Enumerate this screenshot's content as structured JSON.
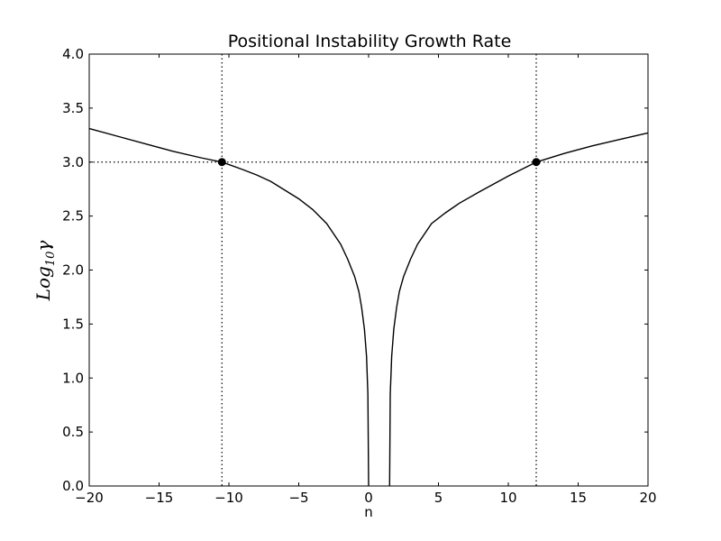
{
  "chart_data": {
    "type": "line",
    "title": "Positional Instability Growth Rate",
    "xlabel": "n",
    "ylabel": {
      "base": "Log",
      "subscript": "10",
      "symbol": "γ"
    },
    "xlim": [
      -20,
      20
    ],
    "ylim": [
      0.0,
      4.0
    ],
    "x_ticks": [
      -20,
      -15,
      -10,
      -5,
      0,
      5,
      10,
      15,
      20
    ],
    "x_tick_labels": [
      "−20",
      "−15",
      "−10",
      "−5",
      "0",
      "5",
      "10",
      "15",
      "20"
    ],
    "y_ticks": [
      0.0,
      0.5,
      1.0,
      1.5,
      2.0,
      2.5,
      3.0,
      3.5,
      4.0
    ],
    "y_tick_labels": [
      "0.0",
      "0.5",
      "1.0",
      "1.5",
      "2.0",
      "2.5",
      "3.0",
      "3.5",
      "4.0"
    ],
    "grid": false,
    "series": [
      {
        "style": "solid",
        "color": "#000000",
        "segments": [
          [
            [
              -20,
              3.31
            ],
            [
              -18,
              3.24
            ],
            [
              -16,
              3.17
            ],
            [
              -14,
              3.1
            ],
            [
              -12,
              3.04
            ],
            [
              -10.5,
              3.0
            ],
            [
              -9,
              2.93
            ],
            [
              -8,
              2.88
            ],
            [
              -7,
              2.82
            ],
            [
              -6,
              2.74
            ],
            [
              -5,
              2.66
            ],
            [
              -4,
              2.56
            ],
            [
              -3,
              2.43
            ],
            [
              -2,
              2.24
            ],
            [
              -1.5,
              2.1
            ],
            [
              -1,
              1.94
            ],
            [
              -0.7,
              1.8
            ],
            [
              -0.5,
              1.65
            ],
            [
              -0.3,
              1.45
            ],
            [
              -0.15,
              1.2
            ],
            [
              -0.05,
              0.85
            ],
            [
              0.0,
              0.0
            ]
          ],
          [
            [
              1.5,
              0.0
            ],
            [
              1.55,
              0.85
            ],
            [
              1.65,
              1.2
            ],
            [
              1.8,
              1.45
            ],
            [
              2.0,
              1.65
            ],
            [
              2.2,
              1.8
            ],
            [
              2.5,
              1.94
            ],
            [
              3.0,
              2.1
            ],
            [
              3.5,
              2.24
            ],
            [
              4.5,
              2.43
            ],
            [
              5.5,
              2.53
            ],
            [
              6.5,
              2.62
            ],
            [
              8,
              2.73
            ],
            [
              10,
              2.87
            ],
            [
              12,
              3.0
            ],
            [
              14,
              3.08
            ],
            [
              16,
              3.15
            ],
            [
              18,
              3.21
            ],
            [
              20,
              3.27
            ]
          ]
        ]
      }
    ],
    "markers": [
      {
        "x": -10.5,
        "y": 3.0
      },
      {
        "x": 12.0,
        "y": 3.0
      }
    ],
    "reference_lines": {
      "horizontal": [
        3.0
      ],
      "vertical": [
        -10.5,
        12.0
      ],
      "style": "dotted"
    }
  }
}
